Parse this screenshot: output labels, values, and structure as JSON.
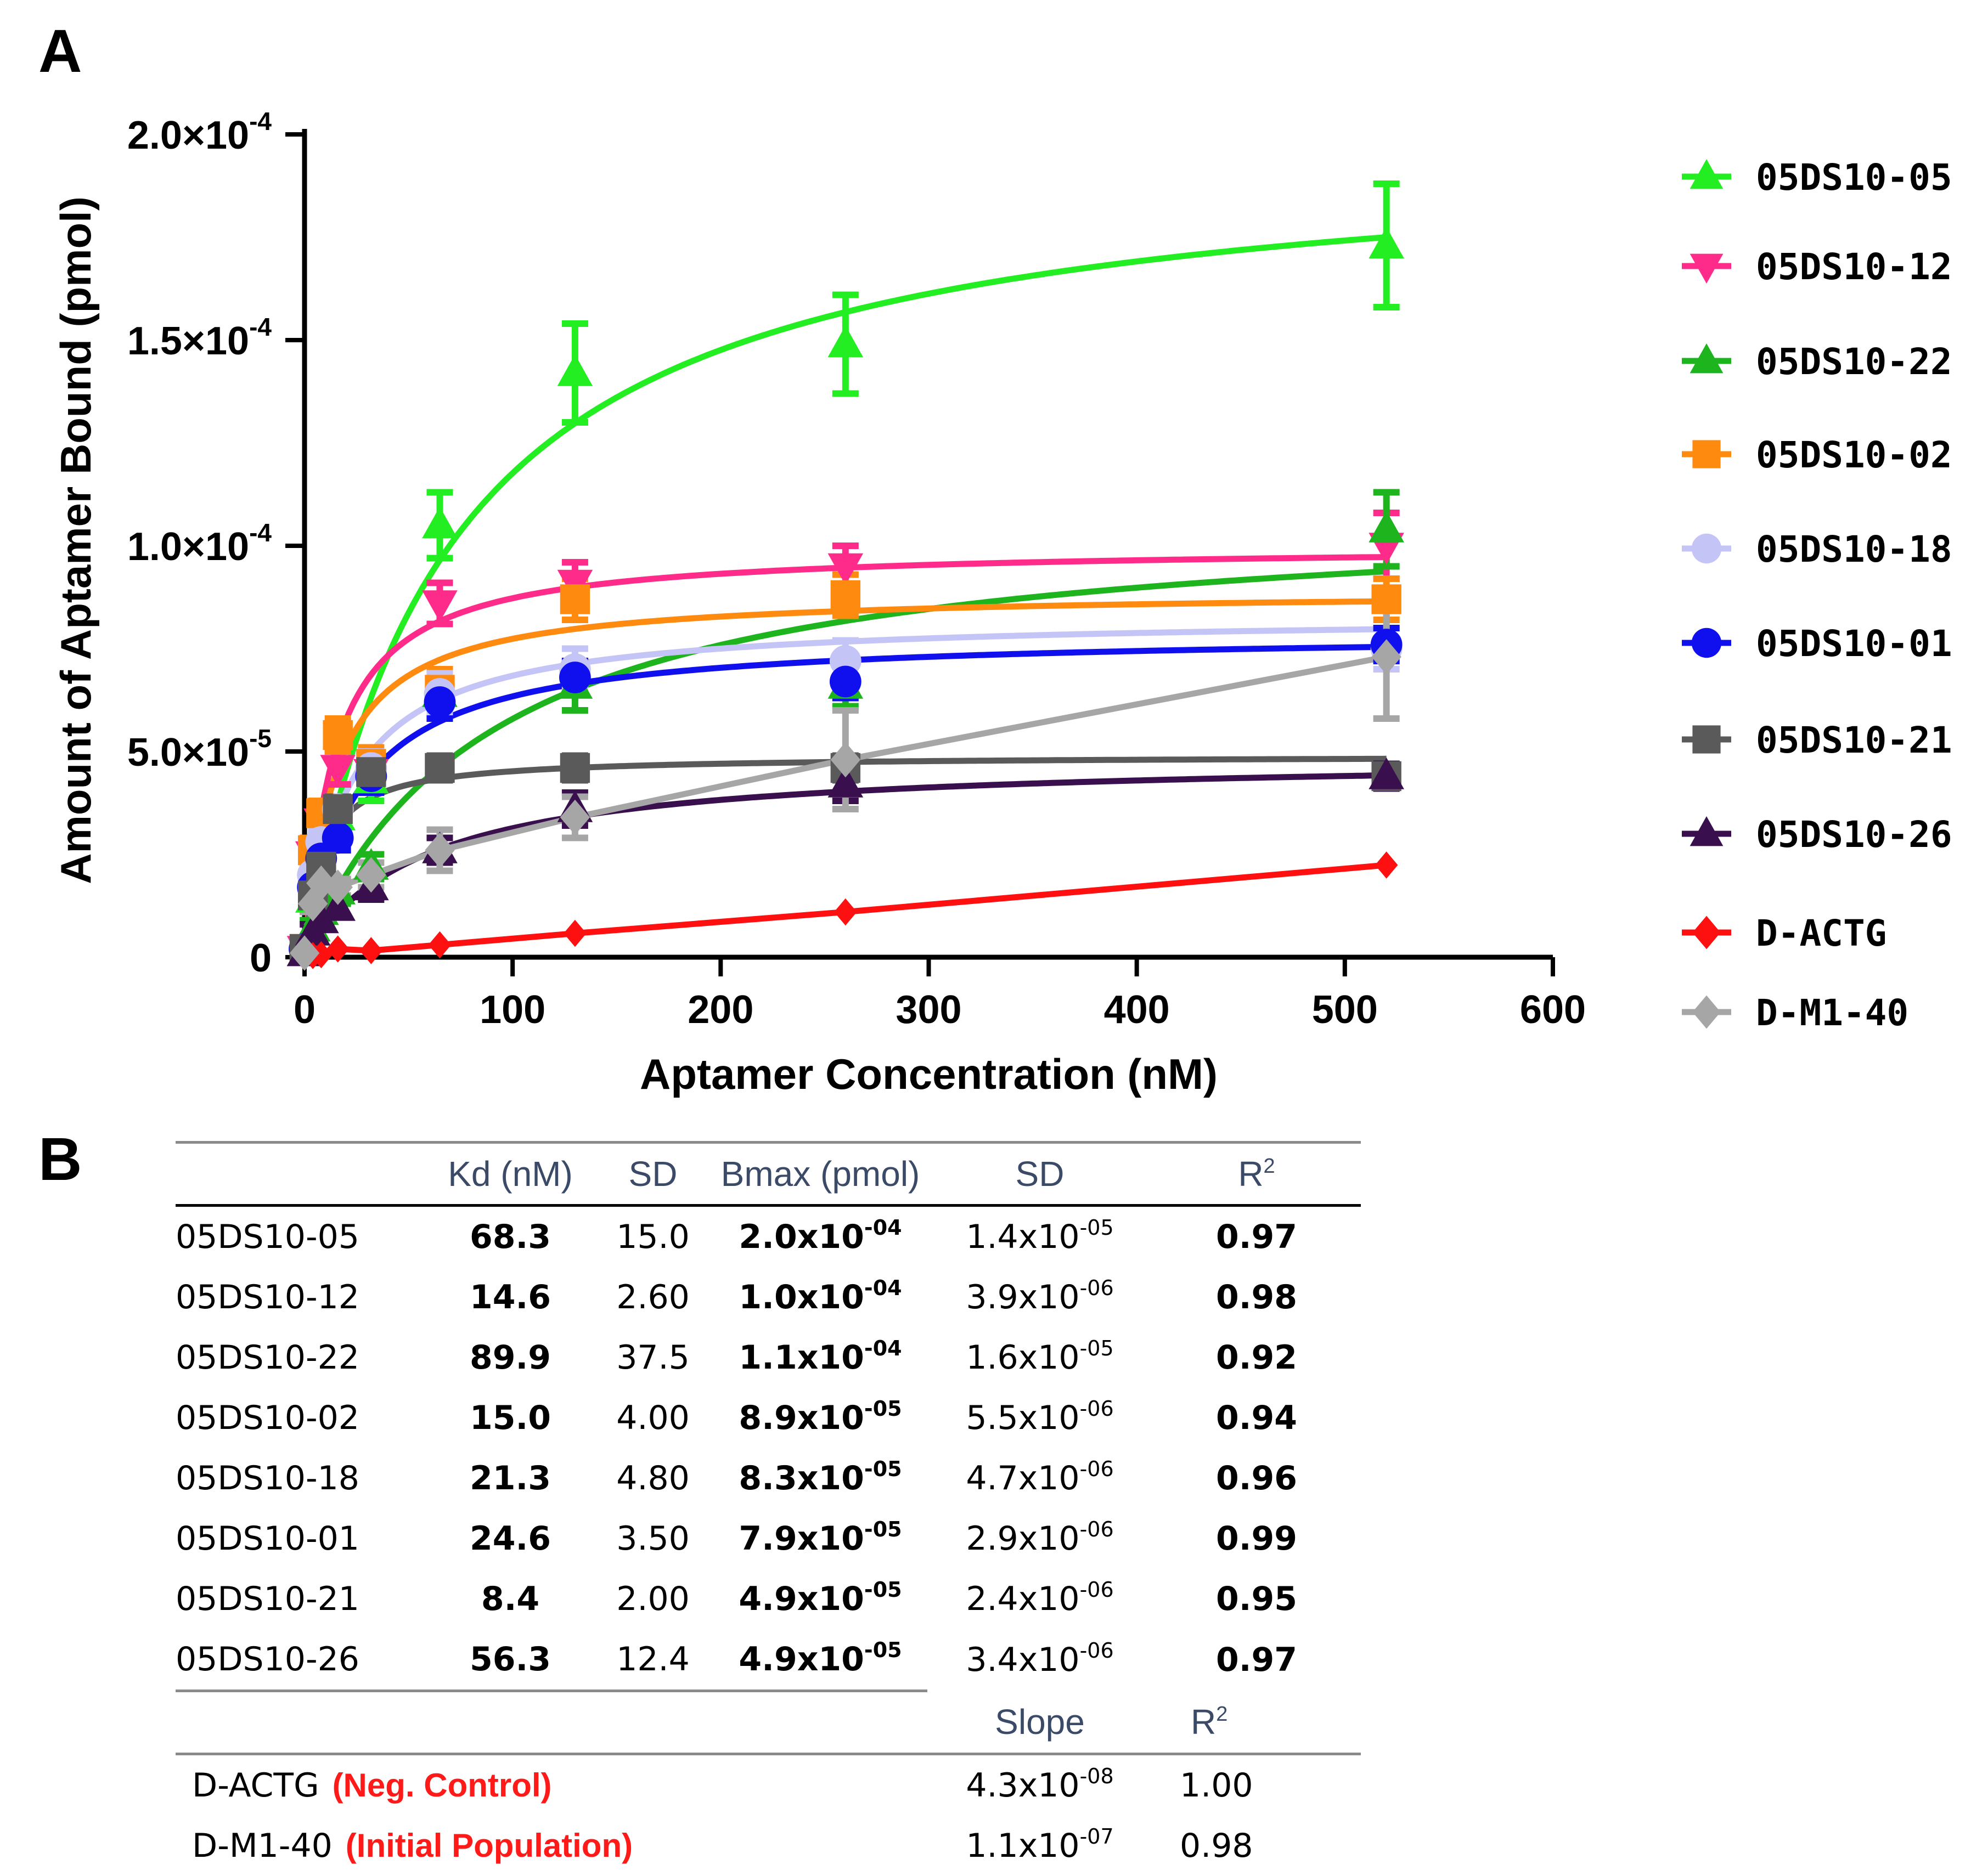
{
  "panel_a_label": "A",
  "panel_b_label": "B",
  "chart_data": {
    "type": "scatter",
    "xlabel": "Aptamer Concentration (nM)",
    "ylabel": "Amount of Aptamer Bound (pmol)",
    "xlim": [
      0,
      600
    ],
    "ylim": [
      0,
      0.0002
    ],
    "x_ticks": [
      "0",
      "100",
      "200",
      "300",
      "400",
      "500",
      "600"
    ],
    "y_ticks": [
      {
        "value": 0,
        "mant": "0",
        "exp": ""
      },
      {
        "value": 5e-05,
        "mant": "5.0×10",
        "exp": "-5"
      },
      {
        "value": 0.0001,
        "mant": "1.0×10",
        "exp": "-4"
      },
      {
        "value": 0.00015,
        "mant": "1.5×10",
        "exp": "-4"
      },
      {
        "value": 0.0002,
        "mant": "2.0×10",
        "exp": "-4"
      }
    ],
    "x": [
      0,
      4,
      8,
      16,
      32,
      65,
      130,
      260,
      520
    ],
    "series": [
      {
        "name": "05DS10-05",
        "color": "#22ee22",
        "marker": "triangle-up",
        "fit": "hyperbolic",
        "bmax": 0.000198,
        "kd": 68.3,
        "values": [
          1e-06,
          1.4e-05,
          2.2e-05,
          3.4e-05,
          4.3e-05,
          0.000105,
          0.000142,
          0.000149,
          0.000173
        ],
        "err": [
          2e-06,
          3e-06,
          3e-06,
          4e-06,
          5e-06,
          8e-06,
          1.2e-05,
          1.2e-05,
          1.5e-05
        ]
      },
      {
        "name": "05DS10-12",
        "color": "#ff2b8a",
        "marker": "triangle-down",
        "fit": "hyperbolic",
        "bmax": 0.0001,
        "kd": 14.6,
        "values": [
          2e-06,
          2.5e-05,
          3.3e-05,
          4.6e-05,
          4.5e-05,
          8.6e-05,
          9.1e-05,
          9.5e-05,
          0.0001
        ],
        "err": [
          2e-06,
          3e-06,
          3e-06,
          4e-06,
          4e-06,
          5e-06,
          5e-06,
          5e-06,
          8e-06
        ]
      },
      {
        "name": "05DS10-22",
        "color": "#1db41d",
        "marker": "triangle-up",
        "fit": "hyperbolic",
        "bmax": 0.00011,
        "kd": 89.9,
        "values": [
          1e-06,
          7e-06,
          1.1e-05,
          1.6e-05,
          2.2e-05,
          6.4e-05,
          6.6e-05,
          6.6e-05,
          0.000104
        ],
        "err": [
          2e-06,
          2e-06,
          2e-06,
          3e-06,
          3e-06,
          6e-06,
          6e-06,
          5e-06,
          9e-06
        ]
      },
      {
        "name": "05DS10-02",
        "color": "#ff8a10",
        "marker": "square",
        "fit": "hyperbolic",
        "bmax": 8.9e-05,
        "kd": 15.0,
        "values": [
          2e-06,
          2.6e-05,
          3.5e-05,
          5.4e-05,
          4.7e-05,
          6.5e-05,
          8.7e-05,
          8.8e-05,
          8.7e-05
        ],
        "err": [
          2e-06,
          3e-06,
          3e-06,
          4e-06,
          4e-06,
          5e-06,
          5e-06,
          5e-06,
          5e-06
        ]
      },
      {
        "name": "05DS10-18",
        "color": "#c4c4f6",
        "marker": "circle",
        "fit": "hyperbolic",
        "bmax": 8.3e-05,
        "kd": 21.3,
        "values": [
          2e-06,
          2e-05,
          2.8e-05,
          3.6e-05,
          4.6e-05,
          6.4e-05,
          7e-05,
          7.2e-05,
          7.5e-05
        ],
        "err": [
          2e-06,
          3e-06,
          3e-06,
          3e-06,
          4e-06,
          5e-06,
          5e-06,
          5e-06,
          5e-06
        ]
      },
      {
        "name": "05DS10-01",
        "color": "#1010ee",
        "marker": "circle",
        "fit": "hyperbolic",
        "bmax": 7.9e-05,
        "kd": 24.6,
        "values": [
          2e-06,
          1.7e-05,
          2.4e-05,
          2.9e-05,
          4.4e-05,
          6.2e-05,
          6.8e-05,
          6.7e-05,
          7.6e-05
        ],
        "err": [
          2e-06,
          2e-06,
          3e-06,
          3e-06,
          4e-06,
          4e-06,
          4e-06,
          4e-06,
          4e-06
        ]
      },
      {
        "name": "05DS10-21",
        "color": "#5a5a5a",
        "marker": "square",
        "fit": "hyperbolic",
        "bmax": 4.9e-05,
        "kd": 8.4,
        "values": [
          2e-06,
          1.5e-05,
          2.2e-05,
          3.6e-05,
          4.5e-05,
          4.6e-05,
          4.6e-05,
          4.6e-05,
          4.4e-05
        ],
        "err": [
          2e-06,
          2e-06,
          2e-06,
          3e-06,
          3e-06,
          3e-06,
          3e-06,
          3e-06,
          3e-06
        ]
      },
      {
        "name": "05DS10-26",
        "color": "#3a0f4e",
        "marker": "triangle-up",
        "fit": "hyperbolic",
        "bmax": 4.9e-05,
        "kd": 56.3,
        "values": [
          1e-06,
          6e-06,
          9e-06,
          1.2e-05,
          1.7e-05,
          2.6e-05,
          3.6e-05,
          4.2e-05,
          4.4e-05
        ],
        "err": [
          2e-06,
          2e-06,
          2e-06,
          2e-06,
          3e-06,
          3e-06,
          4e-06,
          4e-06,
          3e-06
        ]
      },
      {
        "name": "D-ACTG",
        "color": "#ff1010",
        "marker": "diamond",
        "fit": "linear",
        "slope": 4.3e-08,
        "values": [
          2e-07,
          4e-07,
          6e-07,
          2e-06,
          1.6e-06,
          3e-06,
          5.8e-06,
          1.1e-05,
          2.24e-05
        ],
        "err": [
          0,
          0,
          0,
          0,
          0,
          0,
          0,
          0,
          0
        ]
      },
      {
        "name": "D-M1-40",
        "color": "#a6a6a6",
        "marker": "diamond",
        "fit": "linear",
        "slope": 1.1e-07,
        "values": [
          1e-06,
          1.3e-05,
          1.8e-05,
          1.7e-05,
          2e-05,
          2.6e-05,
          3.4e-05,
          4.8e-05,
          7.3e-05
        ],
        "err": [
          1e-06,
          2e-06,
          2e-06,
          2e-06,
          3e-06,
          5e-06,
          5e-06,
          1.2e-05,
          1.5e-05
        ]
      }
    ]
  },
  "table": {
    "headers": {
      "kd": "Kd (nM)",
      "sd1": "SD",
      "bmax": "Bmax (pmol)",
      "sd2": "SD",
      "r2_base": "R",
      "r2_sup": "2"
    },
    "rows": [
      {
        "name": "05DS10-05",
        "kd": "68.3",
        "sd": "15.0",
        "bmax_m": "2.0x10",
        "bmax_e": "-04",
        "sd2_m": "1.4x10",
        "sd2_e": "-05",
        "r2": "0.97"
      },
      {
        "name": "05DS10-12",
        "kd": "14.6",
        "sd": "2.60",
        "bmax_m": "1.0x10",
        "bmax_e": "-04",
        "sd2_m": "3.9x10",
        "sd2_e": "-06",
        "r2": "0.98"
      },
      {
        "name": "05DS10-22",
        "kd": "89.9",
        "sd": "37.5",
        "bmax_m": "1.1x10",
        "bmax_e": "-04",
        "sd2_m": "1.6x10",
        "sd2_e": "-05",
        "r2": "0.92"
      },
      {
        "name": "05DS10-02",
        "kd": "15.0",
        "sd": "4.00",
        "bmax_m": "8.9x10",
        "bmax_e": "-05",
        "sd2_m": "5.5x10",
        "sd2_e": "-06",
        "r2": "0.94"
      },
      {
        "name": "05DS10-18",
        "kd": "21.3",
        "sd": "4.80",
        "bmax_m": "8.3x10",
        "bmax_e": "-05",
        "sd2_m": "4.7x10",
        "sd2_e": "-06",
        "r2": "0.96"
      },
      {
        "name": "05DS10-01",
        "kd": "24.6",
        "sd": "3.50",
        "bmax_m": "7.9x10",
        "bmax_e": "-05",
        "sd2_m": "2.9x10",
        "sd2_e": "-06",
        "r2": "0.99"
      },
      {
        "name": "05DS10-21",
        "kd": "8.4",
        "sd": "2.00",
        "bmax_m": "4.9x10",
        "bmax_e": "-05",
        "sd2_m": "2.4x10",
        "sd2_e": "-06",
        "r2": "0.95"
      },
      {
        "name": "05DS10-26",
        "kd": "56.3",
        "sd": "12.4",
        "bmax_m": "4.9x10",
        "bmax_e": "-05",
        "sd2_m": "3.4x10",
        "sd2_e": "-06",
        "r2": "0.97"
      }
    ],
    "linear_headers": {
      "slope": "Slope",
      "r2_base": "R",
      "r2_sup": "2"
    },
    "linear_rows": [
      {
        "name": "D-ACTG",
        "note": "(Neg. Control)",
        "slope_m": "4.3x10",
        "slope_e": "-08",
        "r2": "1.00"
      },
      {
        "name": "D-M1-40",
        "note": "(Initial Population)",
        "slope_m": "1.1x10",
        "slope_e": "-07",
        "r2": "0.98"
      }
    ]
  }
}
